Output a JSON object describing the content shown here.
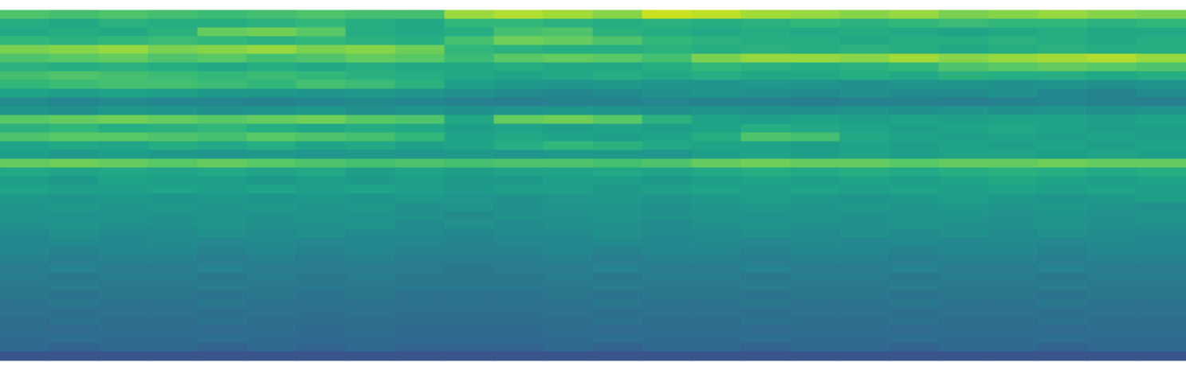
{
  "chart_data": {
    "type": "heatmap",
    "color": "viridis",
    "tick_labels": false,
    "zlim": [
      0,
      100
    ],
    "cells": [
      [
        72,
        70,
        72,
        70,
        68,
        70,
        72,
        70,
        70,
        85,
        88,
        86,
        82,
        92,
        90,
        86,
        84,
        82,
        84,
        80,
        82,
        84,
        82,
        80
      ],
      [
        62,
        60,
        64,
        62,
        62,
        64,
        66,
        62,
        60,
        66,
        66,
        64,
        62,
        64,
        62,
        64,
        66,
        64,
        66,
        68,
        66,
        66,
        64,
        66
      ],
      [
        60,
        62,
        60,
        64,
        76,
        78,
        74,
        62,
        60,
        62,
        70,
        72,
        64,
        62,
        60,
        62,
        60,
        62,
        60,
        58,
        60,
        62,
        60,
        60
      ],
      [
        66,
        64,
        66,
        68,
        66,
        64,
        66,
        64,
        62,
        70,
        78,
        76,
        72,
        66,
        64,
        62,
        62,
        60,
        62,
        62,
        64,
        62,
        60,
        62
      ],
      [
        80,
        82,
        84,
        80,
        82,
        84,
        80,
        82,
        78,
        66,
        64,
        62,
        62,
        64,
        62,
        64,
        62,
        64,
        62,
        60,
        62,
        64,
        62,
        62
      ],
      [
        72,
        74,
        76,
        72,
        74,
        70,
        72,
        76,
        74,
        68,
        74,
        76,
        74,
        70,
        80,
        84,
        84,
        82,
        86,
        82,
        84,
        86,
        88,
        84
      ],
      [
        64,
        62,
        64,
        62,
        60,
        62,
        60,
        62,
        60,
        60,
        62,
        60,
        60,
        62,
        66,
        64,
        62,
        64,
        66,
        72,
        74,
        76,
        74,
        72
      ],
      [
        70,
        72,
        70,
        68,
        66,
        68,
        66,
        64,
        62,
        60,
        58,
        60,
        62,
        60,
        62,
        60,
        60,
        62,
        60,
        64,
        62,
        62,
        60,
        62
      ],
      [
        66,
        68,
        70,
        70,
        68,
        66,
        70,
        68,
        64,
        56,
        54,
        52,
        54,
        52,
        52,
        54,
        52,
        50,
        52,
        52,
        50,
        52,
        50,
        52
      ],
      [
        58,
        56,
        58,
        56,
        54,
        54,
        52,
        54,
        52,
        50,
        48,
        46,
        48,
        50,
        52,
        50,
        48,
        50,
        48,
        48,
        50,
        46,
        44,
        48
      ],
      [
        48,
        46,
        48,
        46,
        46,
        44,
        46,
        48,
        46,
        44,
        42,
        44,
        44,
        46,
        44,
        44,
        42,
        44,
        44,
        42,
        44,
        46,
        44,
        42
      ],
      [
        52,
        50,
        54,
        52,
        50,
        52,
        54,
        50,
        52,
        50,
        52,
        54,
        52,
        50,
        52,
        50,
        50,
        52,
        50,
        52,
        50,
        52,
        50,
        52
      ],
      [
        74,
        76,
        78,
        76,
        74,
        76,
        78,
        74,
        72,
        60,
        76,
        78,
        74,
        64,
        58,
        56,
        58,
        56,
        58,
        56,
        58,
        58,
        56,
        58
      ],
      [
        64,
        66,
        62,
        64,
        66,
        62,
        60,
        62,
        60,
        56,
        58,
        56,
        58,
        56,
        58,
        62,
        60,
        58,
        56,
        58,
        60,
        58,
        56,
        56
      ],
      [
        72,
        74,
        74,
        72,
        70,
        74,
        72,
        70,
        66,
        58,
        60,
        58,
        56,
        58,
        62,
        72,
        70,
        60,
        58,
        56,
        58,
        56,
        58,
        56
      ],
      [
        58,
        60,
        58,
        62,
        60,
        62,
        58,
        60,
        56,
        58,
        62,
        66,
        64,
        60,
        58,
        58,
        56,
        58,
        56,
        58,
        56,
        58,
        56,
        58
      ],
      [
        56,
        54,
        56,
        54,
        52,
        54,
        52,
        54,
        52,
        54,
        52,
        54,
        54,
        52,
        56,
        58,
        56,
        58,
        56,
        58,
        58,
        56,
        58,
        56
      ],
      [
        76,
        78,
        76,
        74,
        76,
        74,
        72,
        70,
        72,
        70,
        72,
        72,
        70,
        72,
        76,
        78,
        76,
        76,
        74,
        76,
        76,
        78,
        76,
        76
      ],
      [
        60,
        58,
        60,
        58,
        60,
        58,
        60,
        56,
        58,
        56,
        58,
        58,
        60,
        58,
        60,
        62,
        60,
        62,
        60,
        62,
        64,
        62,
        60,
        62
      ],
      [
        56,
        54,
        58,
        56,
        56,
        54,
        56,
        54,
        56,
        54,
        54,
        56,
        56,
        54,
        56,
        58,
        56,
        58,
        56,
        58,
        60,
        58,
        56,
        58
      ],
      [
        58,
        56,
        56,
        58,
        56,
        58,
        56,
        58,
        56,
        54,
        56,
        56,
        54,
        56,
        58,
        56,
        58,
        56,
        58,
        56,
        58,
        56,
        58,
        56
      ],
      [
        54,
        52,
        54,
        52,
        54,
        52,
        54,
        52,
        54,
        52,
        50,
        52,
        54,
        52,
        54,
        56,
        54,
        52,
        54,
        56,
        54,
        52,
        54,
        56
      ],
      [
        52,
        54,
        52,
        54,
        52,
        54,
        52,
        54,
        50,
        52,
        50,
        52,
        52,
        50,
        52,
        54,
        52,
        54,
        52,
        54,
        52,
        54,
        52,
        50
      ],
      [
        52,
        50,
        52,
        50,
        52,
        50,
        52,
        50,
        50,
        48,
        50,
        50,
        52,
        50,
        52,
        50,
        52,
        50,
        52,
        52,
        50,
        52,
        50,
        52
      ],
      [
        50,
        52,
        50,
        50,
        52,
        50,
        50,
        52,
        48,
        50,
        48,
        50,
        50,
        48,
        50,
        52,
        50,
        50,
        52,
        50,
        50,
        52,
        50,
        50
      ],
      [
        48,
        50,
        48,
        48,
        50,
        48,
        50,
        48,
        48,
        46,
        48,
        48,
        50,
        48,
        48,
        50,
        48,
        50,
        48,
        50,
        48,
        50,
        48,
        48
      ],
      [
        46,
        48,
        46,
        48,
        46,
        48,
        46,
        46,
        46,
        44,
        46,
        46,
        48,
        46,
        48,
        46,
        48,
        46,
        48,
        46,
        48,
        46,
        48,
        46
      ],
      [
        46,
        44,
        46,
        46,
        44,
        46,
        44,
        46,
        44,
        44,
        44,
        46,
        44,
        46,
        46,
        44,
        46,
        46,
        44,
        46,
        46,
        44,
        46,
        46
      ],
      [
        44,
        42,
        44,
        44,
        42,
        44,
        42,
        44,
        42,
        42,
        42,
        44,
        42,
        44,
        44,
        42,
        44,
        44,
        42,
        44,
        44,
        42,
        44,
        44
      ],
      [
        42,
        44,
        42,
        42,
        44,
        42,
        42,
        42,
        42,
        40,
        42,
        42,
        44,
        42,
        42,
        44,
        42,
        42,
        44,
        42,
        42,
        44,
        42,
        42
      ],
      [
        42,
        40,
        42,
        42,
        40,
        42,
        40,
        42,
        40,
        40,
        40,
        42,
        40,
        42,
        42,
        40,
        42,
        42,
        40,
        42,
        42,
        40,
        42,
        42
      ],
      [
        40,
        42,
        40,
        40,
        42,
        40,
        40,
        40,
        40,
        40,
        40,
        40,
        42,
        40,
        40,
        42,
        40,
        40,
        42,
        40,
        40,
        42,
        40,
        40
      ],
      [
        40,
        38,
        40,
        40,
        38,
        40,
        38,
        40,
        38,
        38,
        38,
        40,
        38,
        40,
        40,
        38,
        40,
        40,
        38,
        40,
        40,
        38,
        40,
        40
      ],
      [
        38,
        40,
        38,
        38,
        40,
        38,
        38,
        38,
        38,
        38,
        38,
        38,
        40,
        38,
        38,
        40,
        38,
        38,
        40,
        38,
        38,
        40,
        38,
        38
      ],
      [
        38,
        36,
        38,
        38,
        36,
        38,
        36,
        38,
        36,
        36,
        36,
        38,
        36,
        38,
        38,
        36,
        38,
        38,
        36,
        38,
        38,
        36,
        38,
        38
      ],
      [
        36,
        38,
        36,
        36,
        38,
        36,
        36,
        36,
        36,
        36,
        36,
        36,
        38,
        36,
        36,
        38,
        36,
        36,
        38,
        36,
        36,
        38,
        36,
        36
      ],
      [
        36,
        34,
        36,
        36,
        34,
        36,
        34,
        36,
        34,
        34,
        34,
        36,
        34,
        36,
        36,
        34,
        36,
        36,
        34,
        36,
        36,
        34,
        36,
        36
      ],
      [
        34,
        36,
        34,
        34,
        36,
        34,
        34,
        34,
        34,
        34,
        34,
        34,
        36,
        34,
        34,
        36,
        34,
        34,
        36,
        34,
        34,
        36,
        34,
        34
      ],
      [
        34,
        32,
        34,
        34,
        32,
        34,
        32,
        34,
        32,
        32,
        32,
        34,
        32,
        34,
        34,
        32,
        34,
        34,
        32,
        34,
        34,
        32,
        34,
        34
      ],
      [
        26,
        26,
        26,
        26,
        26,
        26,
        26,
        26,
        26,
        26,
        26,
        26,
        26,
        26,
        26,
        26,
        26,
        26,
        26,
        26,
        26,
        26,
        26,
        26
      ]
    ]
  }
}
